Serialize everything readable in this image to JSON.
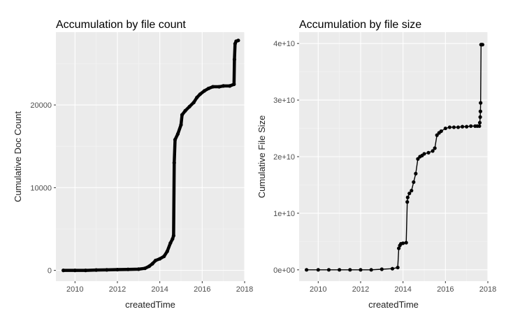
{
  "chart_data": [
    {
      "type": "line",
      "title": "Accumulation by file count",
      "xlabel": "createdTime",
      "ylabel": "Cumulative Doc Count",
      "xlim": [
        2009.1,
        2018.0
      ],
      "ylim": [
        -1300,
        28800
      ],
      "x_ticks": [
        2010,
        2012,
        2014,
        2016,
        2018
      ],
      "x_tick_labels": [
        "2010",
        "2012",
        "2014",
        "2016",
        "2018"
      ],
      "y_ticks": [
        0,
        10000,
        20000
      ],
      "y_tick_labels": [
        "0",
        "10000",
        "20000"
      ],
      "grid": true,
      "legend": "none",
      "series": [
        {
          "color": "#000000",
          "markers": true,
          "x": [
            2009.45,
            2010.0,
            2010.5,
            2011.0,
            2011.5,
            2012.0,
            2012.5,
            2013.0,
            2013.3,
            2013.5,
            2013.65,
            2013.8,
            2014.0,
            2014.2,
            2014.35,
            2014.5,
            2014.6,
            2014.65,
            2014.68,
            2014.72,
            2014.85,
            2015.0,
            2015.05,
            2015.2,
            2015.4,
            2015.6,
            2015.75,
            2015.9,
            2016.1,
            2016.3,
            2016.5,
            2016.8,
            2017.0,
            2017.3,
            2017.5,
            2017.52,
            2017.55,
            2017.6,
            2017.7
          ],
          "y": [
            0,
            0,
            0,
            40,
            60,
            90,
            120,
            150,
            250,
            500,
            800,
            1200,
            1400,
            1700,
            2300,
            3300,
            3800,
            4200,
            13000,
            15800,
            16500,
            17600,
            18800,
            19300,
            19800,
            20300,
            20900,
            21300,
            21700,
            22000,
            22200,
            22200,
            22300,
            22300,
            22500,
            25500,
            27400,
            27700,
            27800
          ]
        }
      ]
    },
    {
      "type": "line",
      "title": "Accumulation by file size",
      "xlabel": "createdTime",
      "ylabel": "Cumulative File Size",
      "xlim": [
        2009.1,
        2018.0
      ],
      "ylim": [
        -2000000000.0,
        42000000000.0
      ],
      "x_ticks": [
        2010,
        2012,
        2014,
        2016,
        2018
      ],
      "x_tick_labels": [
        "2010",
        "2012",
        "2014",
        "2016",
        "2018"
      ],
      "y_ticks": [
        0,
        10000000000.0,
        20000000000.0,
        30000000000.0,
        40000000000.0
      ],
      "y_tick_labels": [
        "0e+00",
        "1e+10",
        "2e+10",
        "3e+10",
        "4e+10"
      ],
      "grid": true,
      "legend": "none",
      "series": [
        {
          "color": "#000000",
          "markers": true,
          "x": [
            2009.45,
            2010.0,
            2010.5,
            2011.0,
            2011.5,
            2012.0,
            2012.5,
            2013.0,
            2013.5,
            2013.75,
            2013.8,
            2013.85,
            2013.9,
            2014.0,
            2014.15,
            2014.2,
            2014.22,
            2014.3,
            2014.4,
            2014.5,
            2014.6,
            2014.7,
            2014.8,
            2014.9,
            2015.0,
            2015.2,
            2015.4,
            2015.5,
            2015.6,
            2015.7,
            2015.8,
            2016.0,
            2016.2,
            2016.4,
            2016.6,
            2016.8,
            2017.0,
            2017.2,
            2017.4,
            2017.5,
            2017.6,
            2017.62,
            2017.64,
            2017.65,
            2017.66,
            2017.68,
            2017.7,
            2017.75
          ],
          "y": [
            0,
            0,
            0,
            0,
            0,
            0,
            0,
            100000000.0,
            200000000.0,
            400000000.0,
            3800000000.0,
            4300000000.0,
            4600000000.0,
            4700000000.0,
            4800000000.0,
            12000000000.0,
            12800000000.0,
            13500000000.0,
            14000000000.0,
            15500000000.0,
            17000000000.0,
            19600000000.0,
            20000000000.0,
            20200000000.0,
            20500000000.0,
            20700000000.0,
            21000000000.0,
            21500000000.0,
            23800000000.0,
            24200000000.0,
            24500000000.0,
            25000000000.0,
            25200000000.0,
            25200000000.0,
            25200000000.0,
            25300000000.0,
            25300000000.0,
            25400000000.0,
            25400000000.0,
            25400000000.0,
            25400000000.0,
            26000000000.0,
            27000000000.0,
            28000000000.0,
            29500000000.0,
            39800000000.0,
            39800000000.0,
            39800000000.0
          ]
        }
      ]
    }
  ]
}
